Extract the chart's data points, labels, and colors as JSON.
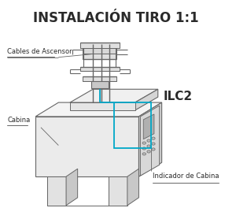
{
  "title": "INSTALACIÓN TIRO 1:1",
  "title_fontsize": 12,
  "title_color": "#2a2a2a",
  "bg_color": "#ffffff",
  "line_color": "#666666",
  "cyan_color": "#00a8c8",
  "label_fontsize": 6.0,
  "ilc2_fontsize": 11,
  "label_cables": "Cables de Ascensor",
  "label_cabina": "Cabina",
  "label_ilc2": "ILC2",
  "label_indicador": "Indicador de Cabina"
}
